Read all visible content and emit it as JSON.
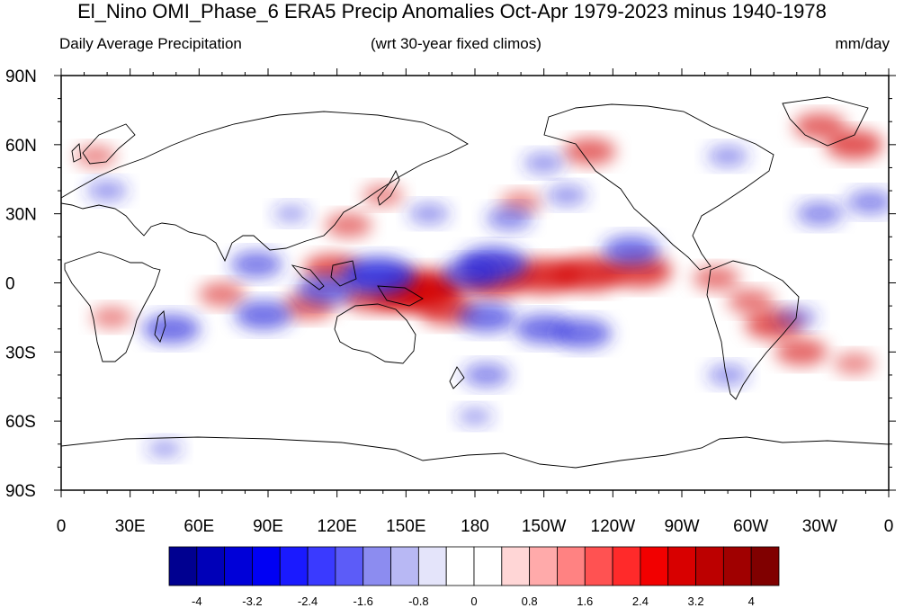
{
  "title": "El_Nino OMI_Phase_6 ERA5 Precip Anomalies Oct-Apr 1979-2023 minus 1940-1978",
  "subtitle_left": "Daily Average Precipitation",
  "subtitle_center": "(wrt 30-year fixed climos)",
  "subtitle_right": "mm/day",
  "y_axis_labels": [
    "90N",
    "60N",
    "30N",
    "0",
    "30S",
    "60S",
    "90S"
  ],
  "x_axis_labels": [
    "0",
    "30E",
    "60E",
    "90E",
    "120E",
    "150E",
    "180",
    "150W",
    "120W",
    "90W",
    "60W",
    "30W",
    "0"
  ],
  "colorbar": {
    "labels": [
      "-4",
      "-3.2",
      "-2.4",
      "-1.6",
      "-0.8",
      "0",
      "0.8",
      "1.6",
      "2.4",
      "3.2",
      "4"
    ],
    "colors": [
      "#000090",
      "#0000b8",
      "#0000d8",
      "#0000f4",
      "#1a1aff",
      "#3a3aff",
      "#5c5cf8",
      "#8c8cf0",
      "#b8b8f4",
      "#e4e4fa",
      "#ffffff",
      "#ffffff",
      "#ffd6d6",
      "#ffaaaa",
      "#ff8282",
      "#ff5252",
      "#ff2a2a",
      "#f20000",
      "#d80000",
      "#bc0000",
      "#a00000",
      "#800000"
    ]
  },
  "map_data": {
    "projection": "cylindrical-equidistant",
    "lon_range": [
      0,
      360
    ],
    "lat_range": [
      -90,
      90
    ],
    "negative_color": "#2a2adc",
    "positive_color": "#d40000",
    "anomalies": [
      {
        "lon": 158,
        "lat": -3,
        "value": 4.0
      },
      {
        "lon": 148,
        "lat": -6,
        "value": 2.4
      },
      {
        "lon": 168,
        "lat": -12,
        "value": 2.4
      },
      {
        "lon": 188,
        "lat": 1,
        "value": 3.0
      },
      {
        "lon": 210,
        "lat": 3,
        "value": 3.2
      },
      {
        "lon": 230,
        "lat": 4,
        "value": 3.2
      },
      {
        "lon": 252,
        "lat": 5,
        "value": 2.8
      },
      {
        "lon": 135,
        "lat": -6,
        "value": 2.4
      },
      {
        "lon": 118,
        "lat": 6,
        "value": 2.4
      },
      {
        "lon": 108,
        "lat": -10,
        "value": 2.0
      },
      {
        "lon": 70,
        "lat": -5,
        "value": 1.6
      },
      {
        "lon": 310,
        "lat": -18,
        "value": 2.4
      },
      {
        "lon": 322,
        "lat": -30,
        "value": 2.0
      },
      {
        "lon": 300,
        "lat": -8,
        "value": 1.6
      },
      {
        "lon": 285,
        "lat": 2,
        "value": 1.6
      },
      {
        "lon": 345,
        "lat": 60,
        "value": 2.4
      },
      {
        "lon": 330,
        "lat": 68,
        "value": 2.0
      },
      {
        "lon": 230,
        "lat": 57,
        "value": 2.0
      },
      {
        "lon": 125,
        "lat": 25,
        "value": 1.6
      },
      {
        "lon": 200,
        "lat": 35,
        "value": 1.2
      },
      {
        "lon": 345,
        "lat": -35,
        "value": 1.2
      },
      {
        "lon": 15,
        "lat": 55,
        "value": 1.2
      },
      {
        "lon": 140,
        "lat": 38,
        "value": 1.2
      },
      {
        "lon": 22,
        "lat": -15,
        "value": 1.2
      },
      {
        "lon": 138,
        "lat": 3,
        "value": -3.6
      },
      {
        "lon": 115,
        "lat": -3,
        "value": -2.4
      },
      {
        "lon": 88,
        "lat": -14,
        "value": -2.4
      },
      {
        "lon": 48,
        "lat": -20,
        "value": -2.4
      },
      {
        "lon": 85,
        "lat": 8,
        "value": -2.0
      },
      {
        "lon": 188,
        "lat": 8,
        "value": -3.2
      },
      {
        "lon": 178,
        "lat": 4,
        "value": -2.4
      },
      {
        "lon": 185,
        "lat": -15,
        "value": -2.4
      },
      {
        "lon": 210,
        "lat": -20,
        "value": -2.4
      },
      {
        "lon": 227,
        "lat": -22,
        "value": -2.4
      },
      {
        "lon": 248,
        "lat": 14,
        "value": -2.4
      },
      {
        "lon": 185,
        "lat": -40,
        "value": -1.6
      },
      {
        "lon": 160,
        "lat": 30,
        "value": -1.2
      },
      {
        "lon": 195,
        "lat": 28,
        "value": -1.6
      },
      {
        "lon": 220,
        "lat": 38,
        "value": -1.2
      },
      {
        "lon": 210,
        "lat": 52,
        "value": -1.2
      },
      {
        "lon": 290,
        "lat": 55,
        "value": -1.2
      },
      {
        "lon": 330,
        "lat": 30,
        "value": -1.6
      },
      {
        "lon": 352,
        "lat": 35,
        "value": -1.6
      },
      {
        "lon": 20,
        "lat": 40,
        "value": -1.2
      },
      {
        "lon": 320,
        "lat": -15,
        "value": -1.2
      },
      {
        "lon": 290,
        "lat": -40,
        "value": -1.2
      },
      {
        "lon": 45,
        "lat": -72,
        "value": -0.8
      },
      {
        "lon": 180,
        "lat": -58,
        "value": -0.8
      },
      {
        "lon": 100,
        "lat": 30,
        "value": -0.8
      }
    ]
  }
}
